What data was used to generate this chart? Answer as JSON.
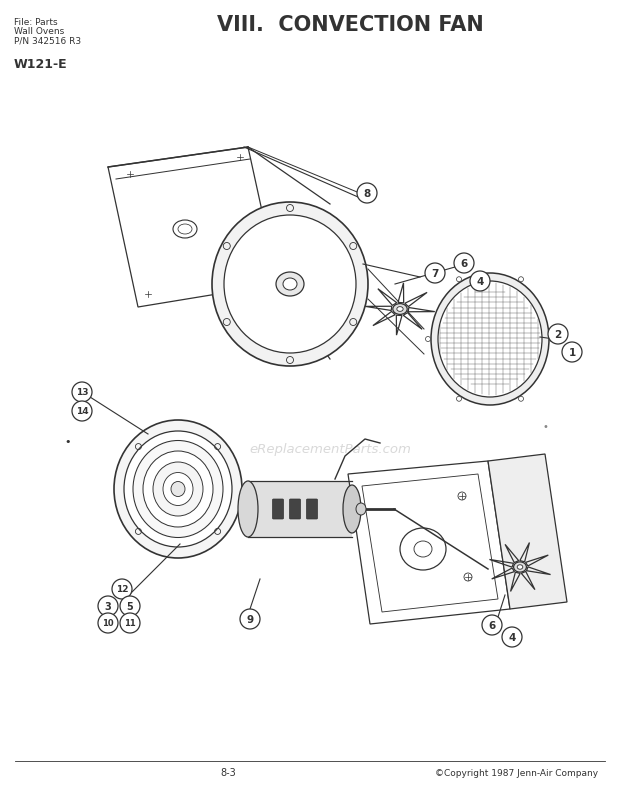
{
  "title": "VIII.  CONVECTION FAN",
  "subtitle_left_line1": "File: Parts",
  "subtitle_left_line2": "Wall Ovens",
  "subtitle_left_line3": "P/N 342516 R3",
  "model": "W121-E",
  "page": "8-3",
  "copyright": "©Copyright 1987 Jenn-Air Company",
  "bg_color": "#ffffff",
  "line_color": "#333333",
  "watermark": "eReplacementParts.com"
}
